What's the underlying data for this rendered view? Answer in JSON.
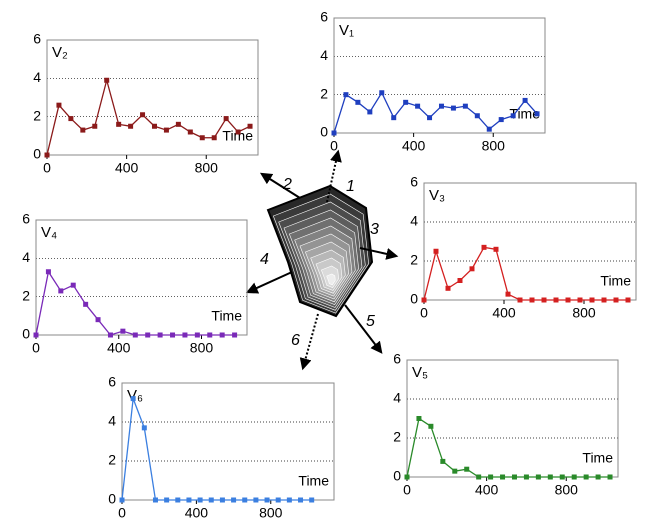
{
  "chart_data": [
    {
      "type": "line",
      "title": "V₂",
      "annotation": "Time",
      "color": "#8b1a1a",
      "x": [
        0,
        60,
        120,
        180,
        240,
        300,
        360,
        420,
        480,
        540,
        600,
        660,
        720,
        780,
        840,
        900,
        960,
        1020
      ],
      "values": [
        0,
        2.6,
        1.9,
        1.3,
        1.5,
        3.9,
        1.6,
        1.5,
        2.1,
        1.5,
        1.3,
        1.6,
        1.2,
        0.9,
        0.9,
        1.9,
        1.2,
        1.5
      ],
      "xlim": [
        0,
        1060
      ],
      "xticks": [
        0,
        400,
        800
      ],
      "ylim": [
        0,
        6
      ],
      "yticks": [
        0,
        2,
        4,
        6
      ],
      "grid": true
    },
    {
      "type": "line",
      "title": "V₁",
      "annotation": "Time",
      "color": "#1f3fbf",
      "x": [
        0,
        60,
        120,
        180,
        240,
        300,
        360,
        420,
        480,
        540,
        600,
        660,
        720,
        780,
        840,
        900,
        960,
        1020
      ],
      "values": [
        0,
        2.0,
        1.6,
        1.1,
        2.1,
        0.8,
        1.6,
        1.4,
        0.8,
        1.4,
        1.3,
        1.4,
        0.9,
        0.2,
        0.7,
        0.9,
        1.7,
        1.0
      ],
      "xlim": [
        0,
        1060
      ],
      "xticks": [
        0,
        400,
        800
      ],
      "ylim": [
        0,
        6
      ],
      "yticks": [
        0,
        2,
        4,
        6
      ],
      "grid": true
    },
    {
      "type": "line",
      "title": "V₃",
      "annotation": "Time",
      "color": "#d42020",
      "x": [
        0,
        60,
        120,
        180,
        240,
        300,
        360,
        420,
        480,
        540,
        600,
        660,
        720,
        780,
        840,
        900,
        960,
        1020
      ],
      "values": [
        0,
        2.5,
        0.6,
        1.0,
        1.6,
        2.7,
        2.6,
        0.3,
        0,
        0,
        0,
        0,
        0,
        0,
        0,
        0,
        0,
        0
      ],
      "xlim": [
        0,
        1060
      ],
      "xticks": [
        0,
        400,
        800
      ],
      "ylim": [
        0,
        6
      ],
      "yticks": [
        0,
        2,
        4,
        6
      ],
      "grid": true
    },
    {
      "type": "line",
      "title": "V₄",
      "annotation": "Time",
      "color": "#7a2ab8",
      "x": [
        0,
        60,
        120,
        180,
        240,
        300,
        360,
        420,
        480,
        540,
        600,
        660,
        720,
        780,
        840,
        900,
        960
      ],
      "values": [
        0,
        3.3,
        2.3,
        2.6,
        1.6,
        0.8,
        0,
        0.2,
        0,
        0,
        0,
        0,
        0,
        0,
        0,
        0,
        0
      ],
      "xlim": [
        0,
        1020
      ],
      "xticks": [
        0,
        400,
        800
      ],
      "ylim": [
        0,
        6
      ],
      "yticks": [
        0,
        2,
        4,
        6
      ],
      "grid": true
    },
    {
      "type": "line",
      "title": "V₆",
      "annotation": "Time",
      "color": "#3b7fe0",
      "x": [
        0,
        60,
        120,
        180,
        240,
        300,
        360,
        420,
        480,
        540,
        600,
        660,
        720,
        780,
        840,
        900,
        960,
        1020
      ],
      "values": [
        0,
        5.2,
        3.7,
        0,
        0,
        0,
        0,
        0,
        0,
        0,
        0,
        0,
        0,
        0,
        0,
        0,
        0,
        0
      ],
      "xlim": [
        0,
        1140
      ],
      "xticks": [
        0,
        400,
        800
      ],
      "ylim": [
        0,
        6
      ],
      "yticks": [
        0,
        2,
        4,
        6
      ],
      "grid": true
    },
    {
      "type": "line",
      "title": "V₅",
      "annotation": "Time",
      "color": "#2a8a2a",
      "x": [
        0,
        60,
        120,
        180,
        240,
        300,
        360,
        420,
        480,
        540,
        600,
        660,
        720,
        780,
        840,
        900,
        960,
        1020
      ],
      "values": [
        0,
        3.0,
        2.6,
        0.8,
        0.3,
        0.4,
        0,
        0,
        0,
        0,
        0,
        0,
        0,
        0,
        0,
        0,
        0,
        0
      ],
      "xlim": [
        0,
        1060
      ],
      "xticks": [
        0,
        400,
        800
      ],
      "ylim": [
        0,
        6
      ],
      "yticks": [
        0,
        2,
        4,
        6
      ],
      "grid": true
    }
  ],
  "diagram": {
    "arrows": [
      "1",
      "2",
      "3",
      "4",
      "5",
      "6"
    ]
  }
}
